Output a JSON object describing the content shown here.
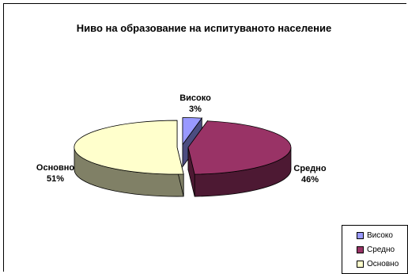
{
  "chart_data": {
    "type": "pie",
    "title": "Ниво на образование на испитуваното население",
    "categories": [
      "Високо",
      "Средно",
      "Основно"
    ],
    "values": [
      3,
      46,
      51
    ],
    "data_labels": [
      {
        "name": "Високо",
        "pct": "3%"
      },
      {
        "name": "Средно",
        "pct": "46%"
      },
      {
        "name": "Основно",
        "pct": "51%"
      }
    ],
    "colors": [
      "#9999FF",
      "#993366",
      "#FFFFCC"
    ],
    "side_colors": [
      "#4C4C80",
      "#4D1933",
      "#808066"
    ],
    "exploded": true,
    "three_d": true,
    "legend": {
      "placement": "bottom-right",
      "items": [
        "Високо",
        "Средно",
        "Основно"
      ]
    }
  }
}
